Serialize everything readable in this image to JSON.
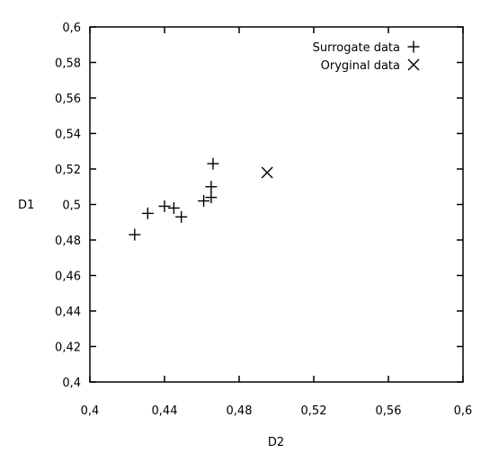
{
  "chart_data": {
    "type": "scatter",
    "xlabel": "D2",
    "ylabel": "D1",
    "xlim": [
      0.4,
      0.6
    ],
    "ylim": [
      0.4,
      0.6
    ],
    "grid": false,
    "legend_position": "top-right",
    "x_ticks": [
      0.4,
      0.44,
      0.48,
      0.52,
      0.56,
      0.6
    ],
    "x_tick_labels": [
      "0,4",
      "0,44",
      "0,48",
      "0,52",
      "0,56",
      "0,6"
    ],
    "y_ticks": [
      0.4,
      0.42,
      0.44,
      0.46,
      0.48,
      0.5,
      0.52,
      0.54,
      0.56,
      0.58,
      0.6
    ],
    "y_tick_labels": [
      "0,4",
      "0,42",
      "0,44",
      "0,46",
      "0,48",
      "0,5",
      "0,52",
      "0,54",
      "0,56",
      "0,58",
      "0,6"
    ],
    "series": [
      {
        "name": "Surrogate data",
        "marker": "plus",
        "color": "#000000",
        "points": [
          {
            "x": 0.424,
            "y": 0.483
          },
          {
            "x": 0.431,
            "y": 0.495
          },
          {
            "x": 0.44,
            "y": 0.499
          },
          {
            "x": 0.445,
            "y": 0.498
          },
          {
            "x": 0.449,
            "y": 0.493
          },
          {
            "x": 0.461,
            "y": 0.502
          },
          {
            "x": 0.465,
            "y": 0.504
          },
          {
            "x": 0.465,
            "y": 0.51
          },
          {
            "x": 0.466,
            "y": 0.523
          }
        ]
      },
      {
        "name": "Oryginal data",
        "marker": "cross",
        "color": "#000000",
        "points": [
          {
            "x": 0.495,
            "y": 0.518
          }
        ]
      }
    ]
  }
}
